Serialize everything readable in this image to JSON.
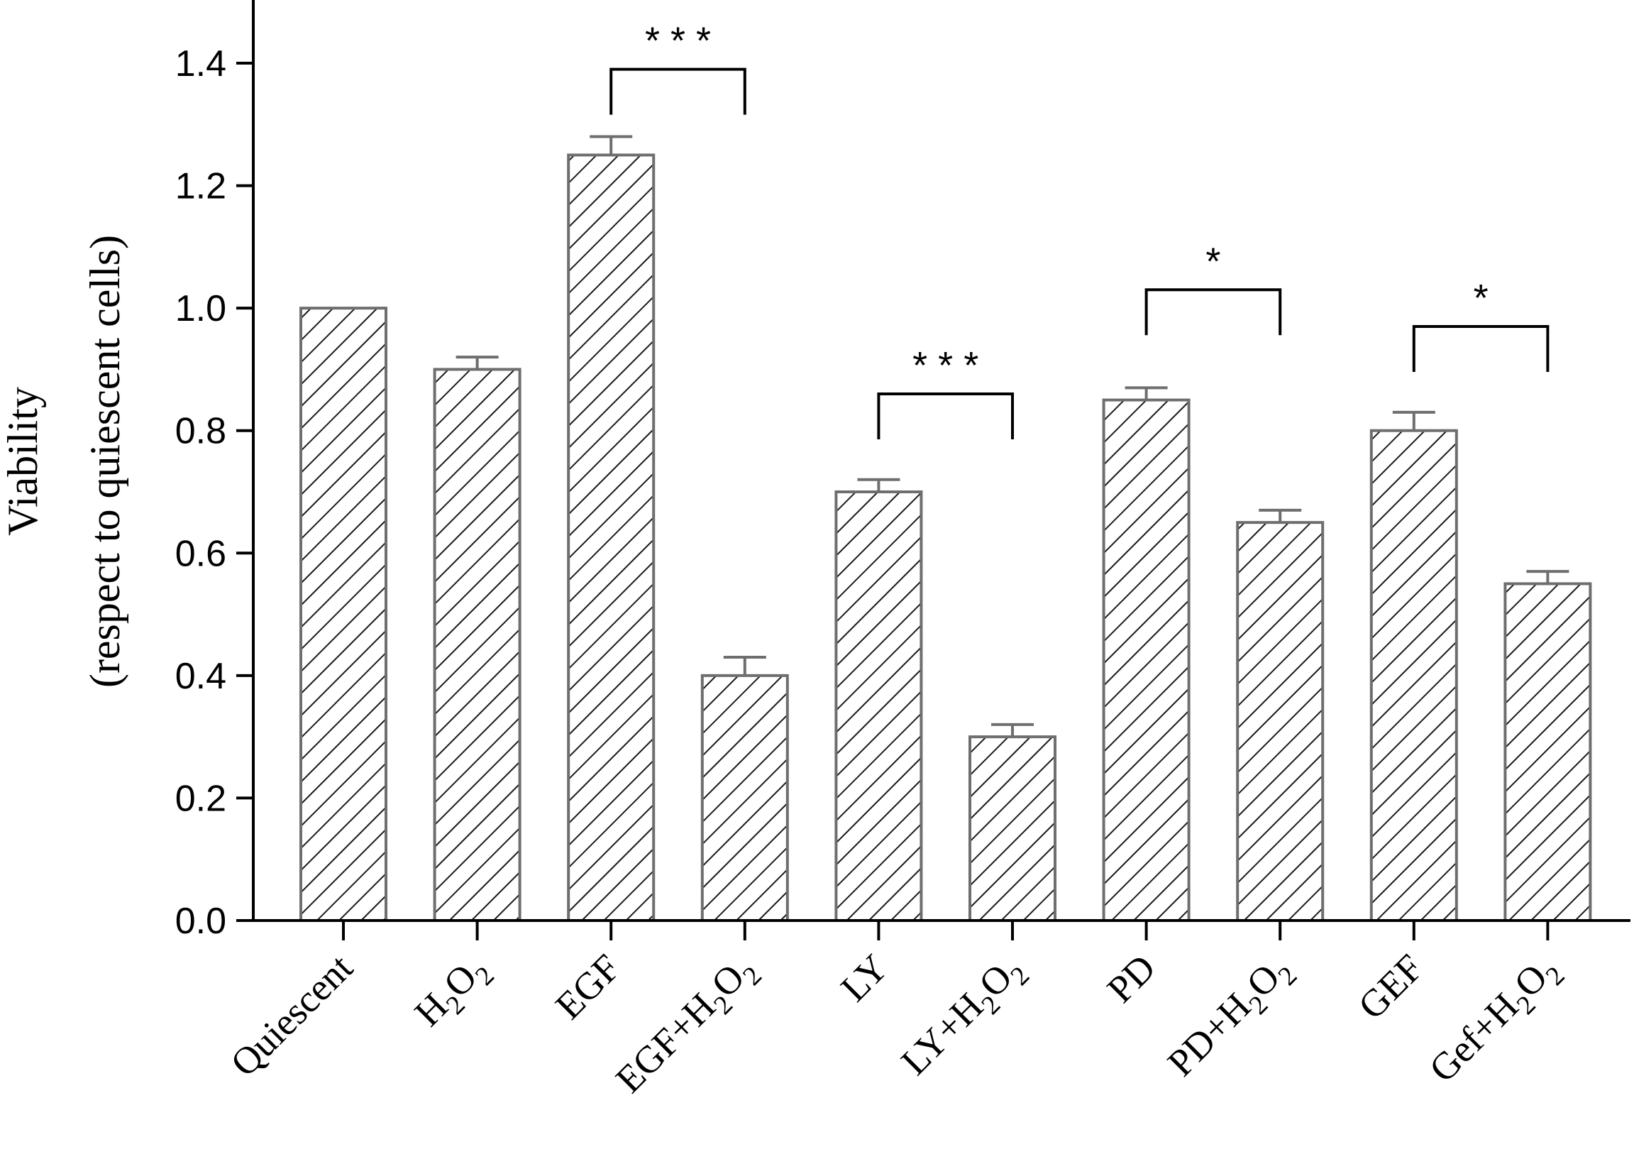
{
  "chart_data": {
    "type": "bar",
    "ylabel_line1": "Viability",
    "ylabel_line2": "(respect to quiescent cells)",
    "ylim": [
      0,
      1.5
    ],
    "yticks": [
      "0.0",
      "0.2",
      "0.4",
      "0.6",
      "0.8",
      "1.0",
      "1.2",
      "1.4"
    ],
    "ytick_values": [
      0,
      0.2,
      0.4,
      0.6,
      0.8,
      1.0,
      1.2,
      1.4
    ],
    "categories": [
      {
        "base": "Quiescent",
        "suffix": false
      },
      {
        "base": "H",
        "suffix": "h2o2-only"
      },
      {
        "base": "EGF",
        "suffix": false
      },
      {
        "base": "EGF+H",
        "suffix": "h2o2"
      },
      {
        "base": "LY",
        "suffix": false
      },
      {
        "base": "LY+H",
        "suffix": "h2o2"
      },
      {
        "base": "PD",
        "suffix": false
      },
      {
        "base": "PD+H",
        "suffix": "h2o2"
      },
      {
        "base": "GEF",
        "suffix": false
      },
      {
        "base": "Gef+H",
        "suffix": "h2o2"
      }
    ],
    "category_names": [
      "Quiescent",
      "H2O2",
      "EGF",
      "EGF+H2O2",
      "LY",
      "LY+H2O2",
      "PD",
      "PD+H2O2",
      "GEF",
      "Gef+H2O2"
    ],
    "values": [
      1.0,
      0.9,
      1.25,
      0.4,
      0.7,
      0.3,
      0.85,
      0.65,
      0.8,
      0.55
    ],
    "errors": [
      0,
      0.02,
      0.03,
      0.03,
      0.02,
      0.02,
      0.02,
      0.02,
      0.03,
      0.02
    ],
    "significance": [
      {
        "from": 2,
        "to": 3,
        "label": "* * *",
        "y": 1.39
      },
      {
        "from": 4,
        "to": 5,
        "label": "* * *",
        "y": 0.86
      },
      {
        "from": 6,
        "to": 7,
        "label": "*",
        "y": 1.03
      },
      {
        "from": 8,
        "to": 9,
        "label": "*",
        "y": 0.97
      }
    ],
    "bar_fill_pattern": "diagonal-hatch",
    "bar_stroke_color": "#6e6e6e",
    "hatch_color": "#1a1a1a",
    "axis_color": "#000000"
  }
}
